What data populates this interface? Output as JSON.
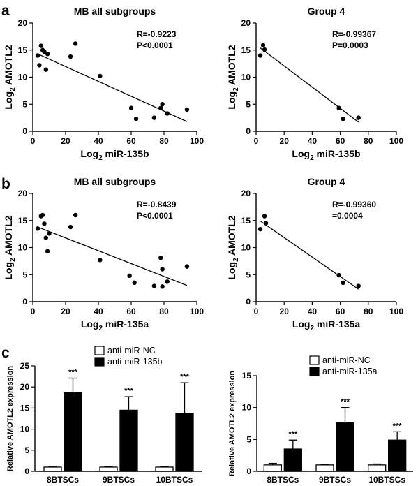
{
  "panel_letters": [
    "a",
    "b",
    "c"
  ],
  "chart_data": [
    {
      "type": "scatter",
      "panel": "a",
      "title": "MB all subgroups",
      "xlabel": "Log₂ miR-135b",
      "ylabel": "Log₂ AMOTL2",
      "xlim": [
        0,
        100
      ],
      "ylim": [
        0,
        20
      ],
      "xticks": [
        0,
        20,
        40,
        60,
        80,
        100
      ],
      "yticks": [
        0,
        5,
        10,
        15,
        20
      ],
      "annotations": [
        "R=-0.9223",
        "P<0.0001"
      ],
      "points": [
        [
          3,
          14
        ],
        [
          4,
          12.2
        ],
        [
          5,
          15.8
        ],
        [
          6,
          15
        ],
        [
          7,
          14.7
        ],
        [
          8,
          11.4
        ],
        [
          9,
          14.3
        ],
        [
          23,
          13.8
        ],
        [
          26,
          16.2
        ],
        [
          41,
          10.2
        ],
        [
          60,
          4.3
        ],
        [
          63,
          2.3
        ],
        [
          74,
          2.5
        ],
        [
          78,
          4.3
        ],
        [
          79,
          5
        ],
        [
          82,
          3.3
        ],
        [
          94,
          4
        ]
      ],
      "fit": [
        [
          3,
          14.3
        ],
        [
          94,
          1.8
        ]
      ]
    },
    {
      "type": "scatter",
      "panel": "a",
      "title": "Group 4",
      "xlabel": "Log₂ miR-135b",
      "ylabel": "Log₂ AMOTL2",
      "xlim": [
        0,
        100
      ],
      "ylim": [
        0,
        20
      ],
      "xticks": [
        0,
        20,
        40,
        60,
        80,
        100
      ],
      "yticks": [
        0,
        5,
        10,
        15,
        20
      ],
      "annotations": [
        "R=-0.99367",
        "P=0.0003"
      ],
      "points": [
        [
          3,
          14
        ],
        [
          5,
          15.9
        ],
        [
          6,
          15.1
        ],
        [
          59,
          4.3
        ],
        [
          62,
          2.3
        ],
        [
          73,
          2.5
        ]
      ],
      "fit": [
        [
          3,
          15.4
        ],
        [
          73,
          1.7
        ]
      ]
    },
    {
      "type": "scatter",
      "panel": "b",
      "title": "MB all subgroups",
      "xlabel": "Log₂ miR-135a",
      "ylabel": "Log₂ AMOTL2",
      "xlim": [
        0,
        100
      ],
      "ylim": [
        0,
        20
      ],
      "xticks": [
        0,
        20,
        40,
        60,
        80,
        100
      ],
      "yticks": [
        0,
        5,
        10,
        15,
        20
      ],
      "annotations": [
        "R=-0.8439",
        "P<0.0001"
      ],
      "points": [
        [
          3,
          13.5
        ],
        [
          5,
          15.8
        ],
        [
          6,
          16
        ],
        [
          7,
          14.4
        ],
        [
          8,
          11.8
        ],
        [
          9,
          9.3
        ],
        [
          10,
          12.6
        ],
        [
          23,
          13.8
        ],
        [
          26,
          16
        ],
        [
          41,
          7.7
        ],
        [
          59,
          4.8
        ],
        [
          62,
          3.5
        ],
        [
          74,
          2.9
        ],
        [
          78,
          8.1
        ],
        [
          79,
          6
        ],
        [
          79,
          2.8
        ],
        [
          82,
          3.7
        ],
        [
          94,
          6.5
        ]
      ],
      "fit": [
        [
          3,
          13.8
        ],
        [
          94,
          3
        ]
      ]
    },
    {
      "type": "scatter",
      "panel": "b",
      "title": "Group 4",
      "xlabel": "Log₂ miR-135a",
      "ylabel": "Log₂ AMOTL2",
      "xlim": [
        0,
        100
      ],
      "ylim": [
        0,
        20
      ],
      "xticks": [
        0,
        20,
        40,
        60,
        80,
        100
      ],
      "yticks": [
        0,
        5,
        10,
        15,
        20
      ],
      "annotations": [
        "R=-0.99360",
        "=0.0004"
      ],
      "points": [
        [
          3,
          13.4
        ],
        [
          6,
          15.8
        ],
        [
          7,
          14.5
        ],
        [
          59,
          4.9
        ],
        [
          62,
          3.5
        ],
        [
          73,
          2.9
        ]
      ],
      "fit": [
        [
          3,
          14.9
        ],
        [
          73,
          2.3
        ]
      ]
    },
    {
      "type": "bar",
      "panel": "c",
      "ylabel": "Relative AMOTL2 expression",
      "categories": [
        "8BTSCs",
        "9BTSCs",
        "10BTSCs"
      ],
      "ylim": [
        0,
        25
      ],
      "yticks": [
        0,
        5,
        10,
        15,
        20,
        25
      ],
      "series": [
        {
          "name": "anti-miR-NC",
          "fill": "#ffffff",
          "values": [
            1.0,
            1.0,
            1.0
          ],
          "errors": [
            0.2,
            0.15,
            0.15
          ]
        },
        {
          "name": "anti-miR-135b",
          "fill": "#000000",
          "values": [
            18.6,
            14.5,
            13.8
          ],
          "errors": [
            3.5,
            3.2,
            7.2
          ]
        }
      ],
      "significance": [
        "***",
        "***",
        "***"
      ]
    },
    {
      "type": "bar",
      "panel": "c",
      "ylabel": "Relative AMOTL2 expression",
      "categories": [
        "8BTSCs",
        "9BTSCs",
        "10BTSCs"
      ],
      "ylim": [
        0,
        15
      ],
      "yticks": [
        0,
        5,
        10,
        15
      ],
      "series": [
        {
          "name": "anti-miR-NC",
          "fill": "#ffffff",
          "values": [
            1.0,
            1.0,
            1.0
          ],
          "errors": [
            0.25,
            0.05,
            0.15
          ]
        },
        {
          "name": "anti-miR-135a",
          "fill": "#000000",
          "values": [
            3.5,
            7.6,
            4.9
          ],
          "errors": [
            1.4,
            2.4,
            1.3
          ]
        }
      ],
      "significance": [
        "***",
        "***",
        "***"
      ]
    }
  ]
}
